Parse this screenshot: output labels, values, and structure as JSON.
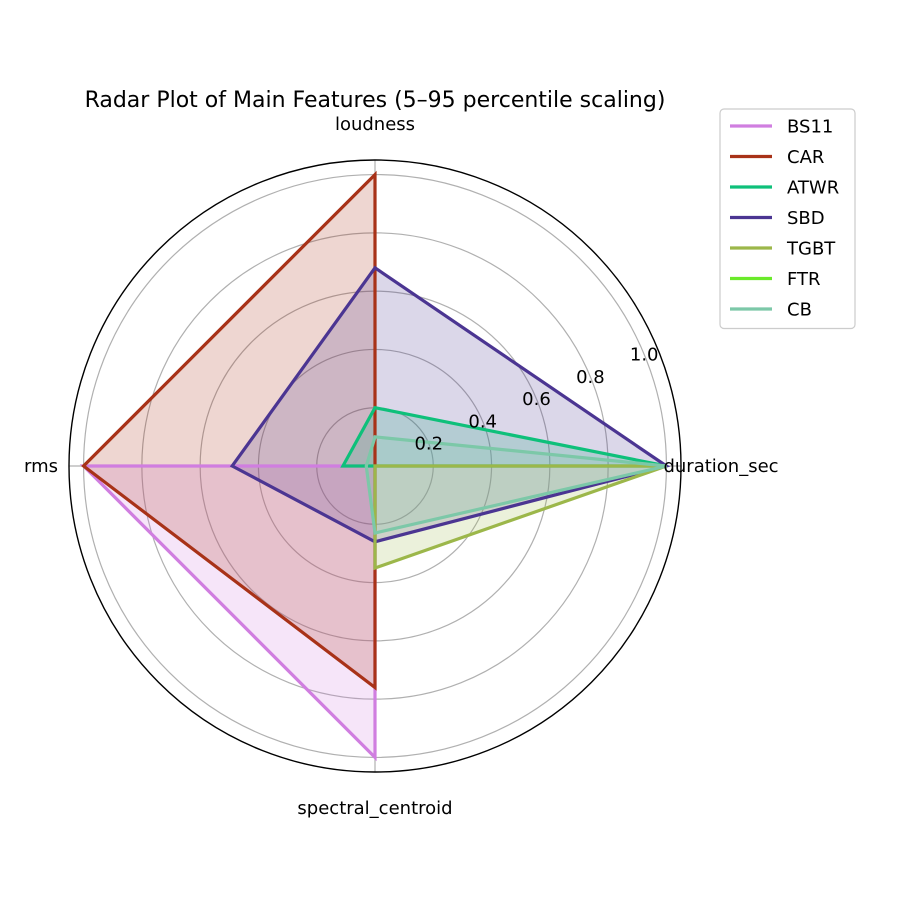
{
  "chart_data": {
    "type": "radar",
    "title": "Radar Plot of Main Features (5–95 percentile scaling)",
    "axes": [
      "duration_sec",
      "loudness",
      "rms",
      "spectral_centroid"
    ],
    "radial_ticks": [
      "0.2",
      "0.4",
      "0.6",
      "0.8",
      "1.0"
    ],
    "rlim": [
      0,
      1.05
    ],
    "grid": true,
    "legend_position": "top-right",
    "series": [
      {
        "name": "BS11",
        "color": "#d07ee0",
        "values": [
          0.0,
          0.0,
          1.0,
          1.0
        ]
      },
      {
        "name": "CAR",
        "color": "#a83218",
        "values": [
          0.0,
          1.0,
          1.0,
          0.76
        ]
      },
      {
        "name": "ATWR",
        "color": "#0ec07a",
        "values": [
          1.0,
          0.2,
          0.11,
          0.0
        ]
      },
      {
        "name": "SBD",
        "color": "#4b3592",
        "values": [
          1.0,
          0.68,
          0.49,
          0.26
        ]
      },
      {
        "name": "TGBT",
        "color": "#9cb74a",
        "values": [
          1.0,
          0.0,
          0.0,
          0.35
        ]
      },
      {
        "name": "FTR",
        "color": "#6aea2a",
        "values": [
          0.0,
          0.0,
          0.0,
          0.0
        ]
      },
      {
        "name": "CB",
        "color": "#7cc8a8",
        "values": [
          1.0,
          0.1,
          0.03,
          0.23
        ]
      }
    ]
  }
}
